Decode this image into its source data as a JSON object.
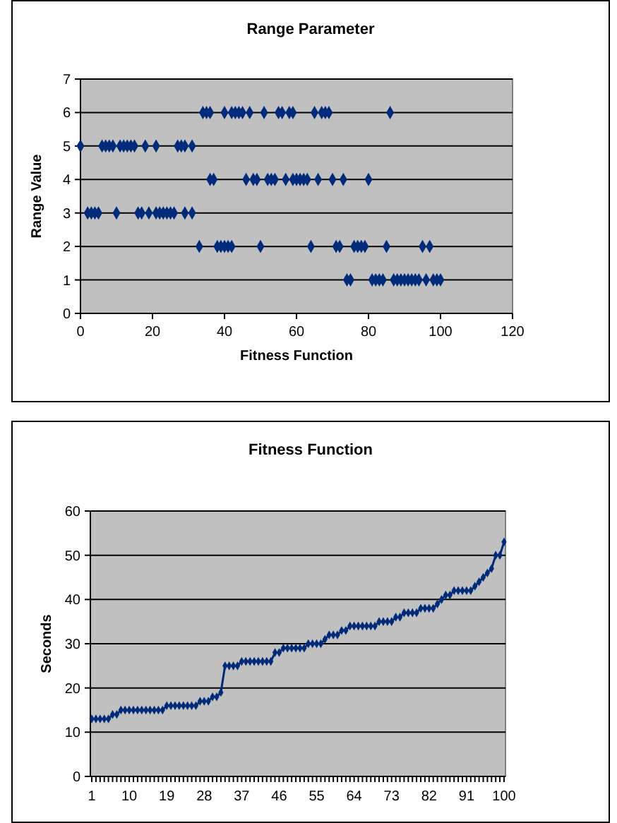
{
  "chart_data": [
    {
      "type": "scatter",
      "title": "Range Parameter",
      "xlabel": "Fitness Function",
      "ylabel": "Range Value",
      "xlim": [
        0,
        120
      ],
      "xticks": [
        0,
        20,
        40,
        60,
        80,
        100,
        120
      ],
      "ylim": [
        0,
        7
      ],
      "yticks": [
        0,
        1,
        2,
        3,
        4,
        5,
        6,
        7
      ],
      "grid": "y",
      "marker": "diamond",
      "series": [
        {
          "color": "#002a7a",
          "x": [
            34,
            35,
            36,
            40,
            42,
            43,
            44,
            45,
            47,
            51,
            55,
            56,
            58,
            59,
            65,
            67,
            68,
            69,
            86,
            0,
            6,
            7,
            8,
            9,
            11,
            12,
            13,
            14,
            15,
            18,
            21,
            27,
            28,
            29,
            31,
            36,
            37,
            46,
            48,
            49,
            52,
            53,
            54,
            57,
            59,
            60,
            61,
            62,
            63,
            66,
            70,
            73,
            80,
            2,
            3,
            4,
            5,
            10,
            16,
            17,
            19,
            21,
            22,
            23,
            24,
            25,
            26,
            29,
            31,
            33,
            38,
            39,
            40,
            41,
            42,
            50,
            64,
            71,
            72,
            76,
            77,
            78,
            79,
            85,
            95,
            97,
            74,
            75,
            81,
            82,
            83,
            84,
            87,
            88,
            89,
            90,
            91,
            92,
            93,
            94,
            96,
            98,
            99,
            100
          ],
          "values": [
            6,
            6,
            6,
            6,
            6,
            6,
            6,
            6,
            6,
            6,
            6,
            6,
            6,
            6,
            6,
            6,
            6,
            6,
            6,
            5,
            5,
            5,
            5,
            5,
            5,
            5,
            5,
            5,
            5,
            5,
            5,
            5,
            5,
            5,
            5,
            4,
            4,
            4,
            4,
            4,
            4,
            4,
            4,
            4,
            4,
            4,
            4,
            4,
            4,
            4,
            4,
            4,
            4,
            3,
            3,
            3,
            3,
            3,
            3,
            3,
            3,
            3,
            3,
            3,
            3,
            3,
            3,
            3,
            3,
            2,
            2,
            2,
            2,
            2,
            2,
            2,
            2,
            2,
            2,
            2,
            2,
            2,
            2,
            2,
            2,
            2,
            1,
            1,
            1,
            1,
            1,
            1,
            1,
            1,
            1,
            1,
            1,
            1,
            1,
            1,
            1,
            1,
            1,
            1
          ]
        }
      ]
    },
    {
      "type": "line",
      "title": "Fitness Function",
      "ylabel": "Seconds",
      "ylim": [
        0,
        60
      ],
      "yticks": [
        0,
        10,
        20,
        30,
        40,
        50,
        60
      ],
      "grid": "y",
      "marker": "diamond",
      "line_style": "solid",
      "categories": [
        "1",
        null,
        null,
        null,
        null,
        null,
        null,
        null,
        null,
        "10",
        null,
        null,
        null,
        null,
        null,
        null,
        null,
        null,
        "19",
        null,
        null,
        null,
        null,
        null,
        null,
        null,
        null,
        "28",
        null,
        null,
        null,
        null,
        null,
        null,
        null,
        null,
        "37",
        null,
        null,
        null,
        null,
        null,
        null,
        null,
        null,
        "46",
        null,
        null,
        null,
        null,
        null,
        null,
        null,
        null,
        "55",
        null,
        null,
        null,
        null,
        null,
        null,
        null,
        null,
        "64",
        null,
        null,
        null,
        null,
        null,
        null,
        null,
        null,
        "73",
        null,
        null,
        null,
        null,
        null,
        null,
        null,
        null,
        "82",
        null,
        null,
        null,
        null,
        null,
        null,
        null,
        null,
        "91",
        null,
        null,
        null,
        null,
        null,
        null,
        null,
        null,
        "100"
      ],
      "series": [
        {
          "color": "#002a7a",
          "values": [
            13,
            13,
            13,
            13,
            13,
            14,
            14,
            15,
            15,
            15,
            15,
            15,
            15,
            15,
            15,
            15,
            15,
            15,
            16,
            16,
            16,
            16,
            16,
            16,
            16,
            16,
            17,
            17,
            17,
            18,
            18,
            19,
            25,
            25,
            25,
            25,
            26,
            26,
            26,
            26,
            26,
            26,
            26,
            26,
            28,
            28,
            29,
            29,
            29,
            29,
            29,
            29,
            30,
            30,
            30,
            30,
            31,
            32,
            32,
            32,
            33,
            33,
            34,
            34,
            34,
            34,
            34,
            34,
            34,
            35,
            35,
            35,
            35,
            36,
            36,
            37,
            37,
            37,
            37,
            38,
            38,
            38,
            38,
            39,
            40,
            41,
            41,
            42,
            42,
            42,
            42,
            42,
            43,
            44,
            45,
            46,
            47,
            50,
            50,
            53
          ]
        }
      ]
    }
  ]
}
